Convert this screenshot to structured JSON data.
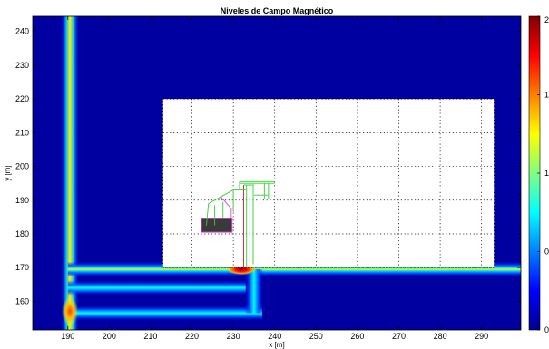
{
  "chart_data": {
    "type": "heatmap",
    "title": "Niveles de Campo Magnético",
    "xlabel": "x [m]",
    "ylabel": "y [m]",
    "xlim": [
      181.5,
      299.5
    ],
    "ylim": [
      151.5,
      244.5
    ],
    "x_ticks": [
      190,
      200,
      210,
      220,
      230,
      240,
      250,
      260,
      270,
      280,
      290
    ],
    "y_ticks": [
      160,
      170,
      180,
      190,
      200,
      210,
      220,
      230,
      240
    ],
    "colormap": "jet",
    "colorbar": {
      "min": 0,
      "max": 2,
      "visible_tick_labels": [
        "2",
        "1",
        "1",
        "0",
        "0"
      ]
    },
    "building": {
      "x": [
        213,
        293
      ],
      "y": [
        170,
        220
      ],
      "grid": "dotted"
    },
    "field_lines": [
      {
        "name": "",
        "orientation": "vertical",
        "x": 190.5,
        "y": [
          151.5,
          244.5
        ],
        "peak_at_y": 157
      },
      {
        "name": "",
        "orientation": "horizontal",
        "y": 169.5,
        "x": [
          190,
          299.5
        ]
      },
      {
        "name": "",
        "orientation": "horizontal",
        "y": 164,
        "x": [
          190,
          233
        ]
      },
      {
        "name": "",
        "orientation": "horizontal",
        "y": 156.5,
        "x": [
          190,
          237
        ]
      },
      {
        "name": "",
        "orientation": "vertical",
        "x": 235,
        "y": [
          156.5,
          169.5
        ]
      }
    ],
    "hotspot": {
      "x": 232,
      "y": 169.5
    },
    "colors": {
      "background_field": "#0000a0",
      "building_fill": "#ffffff",
      "block_fill": "#3a3a3a"
    }
  }
}
